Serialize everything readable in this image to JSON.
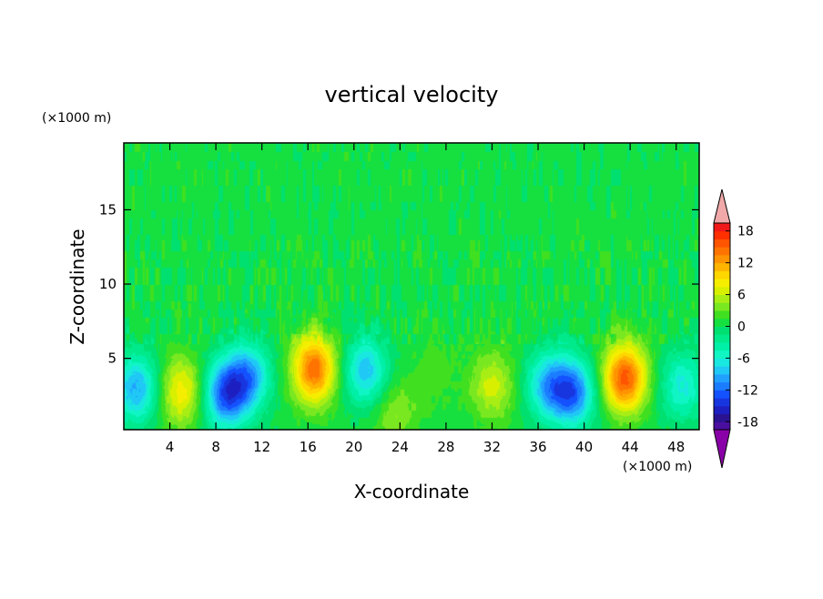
{
  "chart_data": {
    "type": "heatmap",
    "title": "vertical velocity",
    "xlabel": "X-coordinate",
    "ylabel": "Z-coordinate",
    "x_unit": "(×1000 m)",
    "y_unit": "(×1000 m)",
    "xlim": [
      0,
      50
    ],
    "ylim": [
      0.2,
      19.5
    ],
    "x_ticks": [
      4,
      8,
      12,
      16,
      20,
      24,
      28,
      32,
      36,
      40,
      44,
      48
    ],
    "y_ticks": [
      5,
      10,
      15
    ],
    "colorbar": {
      "ticks": [
        18,
        12,
        6,
        0,
        -6,
        -12,
        -18
      ],
      "levels": [
        -21,
        -19.5,
        -18,
        -16.5,
        -15,
        -13.5,
        -12,
        -10.5,
        -9,
        -7.5,
        -6,
        -4.5,
        -3,
        -1.5,
        0,
        1.5,
        3,
        4.5,
        6,
        7.5,
        9,
        10.5,
        12,
        13.5,
        15,
        16.5,
        18,
        19.5,
        21
      ],
      "colors": [
        "#8a00a8",
        "#4b0fa0",
        "#2a1290",
        "#1d1fc0",
        "#1836e0",
        "#1452ff",
        "#1c7cff",
        "#21a0ff",
        "#1fc8f5",
        "#18e8e0",
        "#10f5c4",
        "#00f0a8",
        "#00ea8c",
        "#00e070",
        "#15e040",
        "#40e020",
        "#7ae820",
        "#a8ee14",
        "#d8f000",
        "#f6ee00",
        "#ffd600",
        "#ffb400",
        "#ff9400",
        "#ff7400",
        "#ff5400",
        "#ff3000",
        "#f01818",
        "#f0a0a0"
      ],
      "extend_high_color": "#f0a8a8",
      "extend_low_color": "#8a00a8"
    },
    "features": [
      {
        "x": 1.0,
        "z": 3.0,
        "value": -10
      },
      {
        "x": 5.0,
        "z": 2.8,
        "value": 8
      },
      {
        "x": 8.8,
        "z": 2.6,
        "value": -13
      },
      {
        "x": 10.8,
        "z": 3.8,
        "value": -10
      },
      {
        "x": 16.5,
        "z": 4.3,
        "value": 14
      },
      {
        "x": 21.0,
        "z": 4.2,
        "value": -9
      },
      {
        "x": 23.6,
        "z": 1.3,
        "value": 4
      },
      {
        "x": 27.0,
        "z": 4.2,
        "value": 2
      },
      {
        "x": 32.0,
        "z": 3.2,
        "value": 6
      },
      {
        "x": 36.8,
        "z": 3.2,
        "value": -9
      },
      {
        "x": 39.0,
        "z": 2.7,
        "value": -12
      },
      {
        "x": 43.5,
        "z": 3.7,
        "value": 15
      },
      {
        "x": 48.5,
        "z": 3.2,
        "value": -7
      }
    ]
  }
}
